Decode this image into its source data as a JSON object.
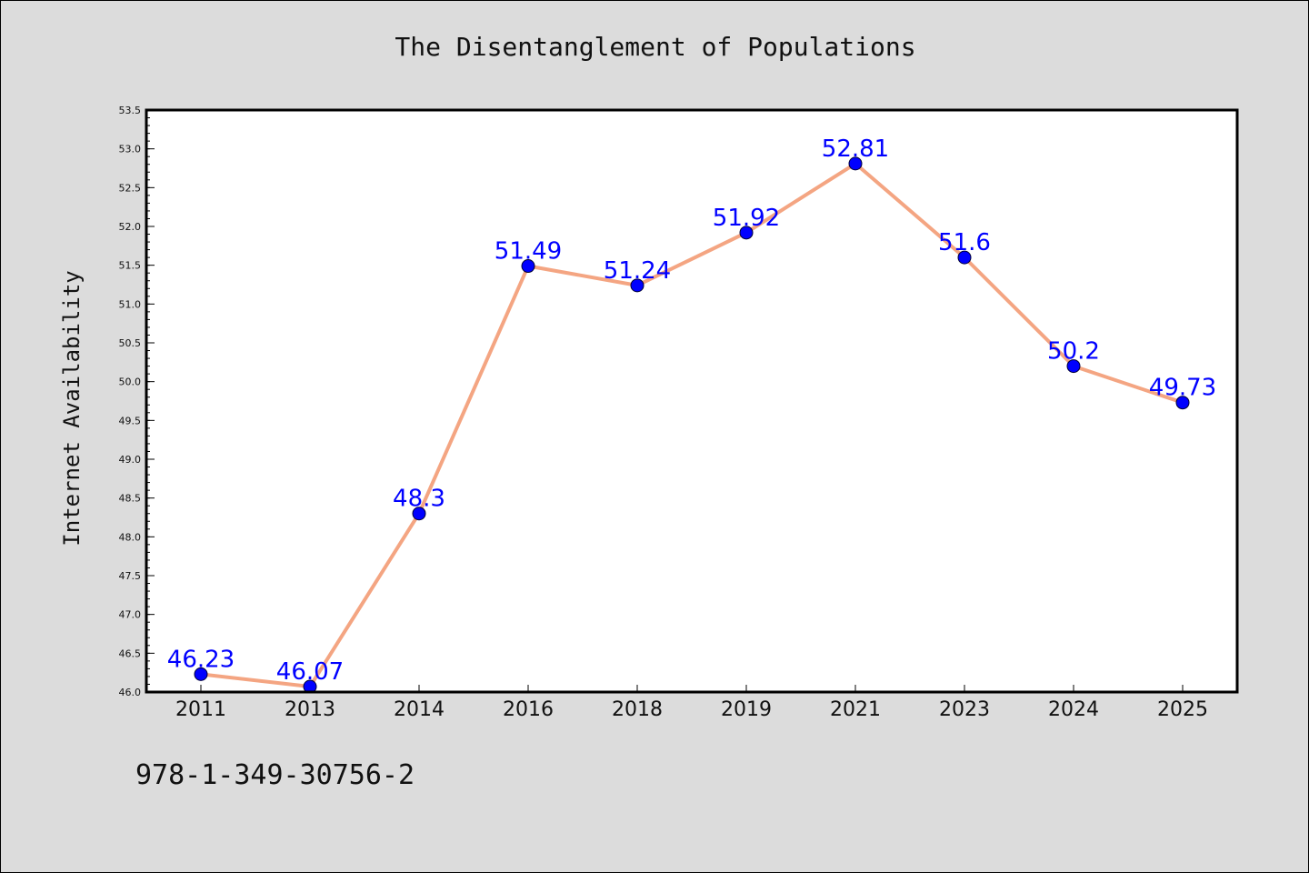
{
  "chart_data": {
    "type": "line",
    "title": "The Disentanglement of Populations",
    "xlabel": "",
    "ylabel": "Internet Availability",
    "categories": [
      "2011",
      "2013",
      "2014",
      "2016",
      "2018",
      "2019",
      "2021",
      "2023",
      "2024",
      "2025"
    ],
    "series": [
      {
        "values": [
          46.23,
          46.07,
          48.3,
          51.49,
          51.24,
          51.92,
          52.81,
          51.6,
          50.2,
          49.73
        ],
        "data_labels": [
          "46.23",
          "46.07",
          "48.3",
          "51.49",
          "51.24",
          "51.92",
          "52.81",
          "51.6",
          "50.2",
          "49.73"
        ],
        "line_color": "#f4a582",
        "marker_color": "#0000ff"
      }
    ],
    "ylim": [
      46.0,
      53.5
    ],
    "yticks": [
      "46.0",
      "46.5",
      "47.0",
      "47.5",
      "48.0",
      "48.5",
      "49.0",
      "49.5",
      "50.0",
      "50.5",
      "51.0",
      "51.5",
      "52.0",
      "52.5",
      "53.0",
      "53.5"
    ],
    "grid": false,
    "legend": "none",
    "background": "#dcdcdc",
    "plot_background": "#ffffff",
    "label_color": "#0000ff"
  },
  "footnote": "978-1-349-30756-2"
}
